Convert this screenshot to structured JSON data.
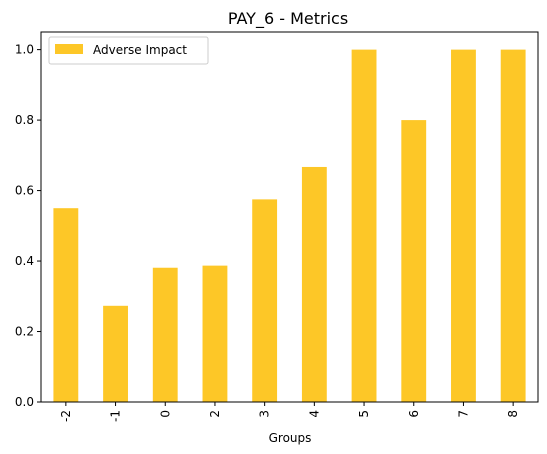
{
  "chart_data": {
    "type": "bar",
    "title": "PAY_6 - Metrics",
    "xlabel": "Groups",
    "ylabel": "",
    "categories": [
      "-2",
      "-1",
      "0",
      "2",
      "3",
      "4",
      "5",
      "6",
      "7",
      "8"
    ],
    "series": [
      {
        "name": "Adverse Impact",
        "values": [
          0.55,
          0.273,
          0.381,
          0.387,
          0.575,
          0.667,
          1.0,
          0.8,
          1.0,
          1.0
        ],
        "color": "#fdc727"
      }
    ],
    "ylim": [
      0,
      1.05
    ],
    "yticks": [
      "0.0",
      "0.2",
      "0.4",
      "0.6",
      "0.8",
      "1.0"
    ],
    "grid": false,
    "legend_position": "top-left"
  }
}
